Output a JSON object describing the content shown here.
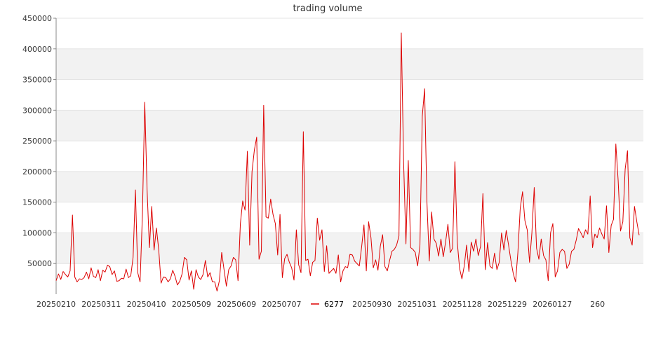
{
  "chart_data": {
    "type": "line",
    "title": "trading volume",
    "xlabel": "",
    "ylabel": "",
    "ylim": [
      0,
      450000
    ],
    "y_ticks": [
      50000,
      100000,
      150000,
      200000,
      250000,
      300000,
      350000,
      400000,
      450000
    ],
    "x_tick_labels": [
      "20250210",
      "20250311",
      "20250410",
      "20250509",
      "20250609",
      "20250707",
      "20250901",
      "20250930",
      "20251031",
      "20251128",
      "20251229",
      "20260127",
      "260"
    ],
    "grid": "horizontal alternating bands",
    "legend_position": "bottom-center",
    "series": [
      {
        "name": "6277",
        "color": "#dd0000",
        "values": [
          22000,
          33000,
          24000,
          37000,
          32000,
          28000,
          38000,
          129000,
          28000,
          20000,
          25000,
          24000,
          27000,
          36000,
          25000,
          43000,
          29000,
          27000,
          40000,
          22000,
          39000,
          36000,
          47000,
          45000,
          32000,
          38000,
          21000,
          22000,
          26000,
          25000,
          41000,
          27000,
          30000,
          60000,
          170000,
          35000,
          20000,
          130000,
          313000,
          170000,
          76000,
          143000,
          72000,
          108000,
          72000,
          18000,
          28000,
          27000,
          20000,
          25000,
          39000,
          29000,
          15000,
          21000,
          33000,
          60000,
          56000,
          23000,
          38000,
          8000,
          40000,
          28000,
          24000,
          32000,
          55000,
          28000,
          35000,
          20000,
          20000,
          5000,
          22000,
          68000,
          40000,
          13000,
          40000,
          46000,
          60000,
          56000,
          22000,
          115000,
          152000,
          137000,
          233000,
          80000,
          200000,
          235000,
          256000,
          57000,
          70000,
          308000,
          126000,
          124000,
          155000,
          130000,
          115000,
          64000,
          130000,
          27000,
          58000,
          65000,
          52000,
          43000,
          23000,
          105000,
          48000,
          35000,
          265000,
          55000,
          57000,
          30000,
          52000,
          55000,
          124000,
          88000,
          105000,
          37000,
          79000,
          34000,
          38000,
          42000,
          34000,
          64000,
          20000,
          38000,
          45000,
          43000,
          65000,
          64000,
          54000,
          50000,
          46000,
          77000,
          113000,
          38000,
          118000,
          92000,
          43000,
          56000,
          39000,
          78000,
          97000,
          45000,
          38000,
          55000,
          70000,
          73000,
          80000,
          95000,
          426000,
          215000,
          82000,
          218000,
          76000,
          73000,
          68000,
          46000,
          80000,
          290000,
          335000,
          150000,
          54000,
          134000,
          90000,
          83000,
          62000,
          90000,
          61000,
          85000,
          114000,
          68000,
          75000,
          216000,
          85000,
          42000,
          25000,
          46000,
          80000,
          37000,
          85000,
          70000,
          90000,
          63000,
          78000,
          164000,
          40000,
          84000,
          46000,
          42000,
          67000,
          40000,
          52000,
          100000,
          72000,
          104000,
          80000,
          55000,
          34000,
          20000,
          68000,
          140000,
          167000,
          120000,
          105000,
          52000,
          100000,
          174000,
          75000,
          57000,
          90000,
          63000,
          56000,
          22000,
          100000,
          115000,
          28000,
          38000,
          68000,
          73000,
          70000,
          42000,
          49000,
          70000,
          73000,
          88000,
          107000,
          100000,
          92000,
          105000,
          98000,
          160000,
          76000,
          98000,
          92000,
          108000,
          98000,
          90000,
          144000,
          68000,
          112000,
          122000,
          245000,
          185000,
          103000,
          118000,
          204000,
          234000,
          92000,
          80000,
          143000,
          118000,
          96000
        ]
      }
    ]
  }
}
